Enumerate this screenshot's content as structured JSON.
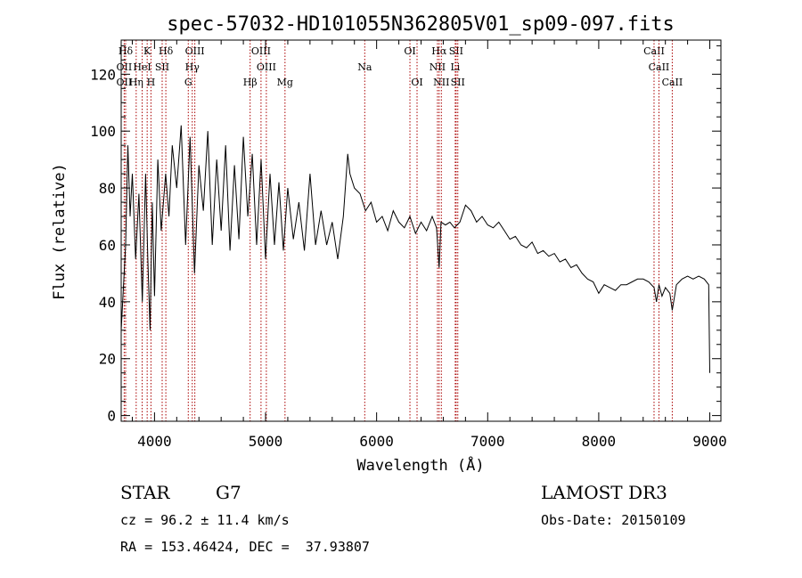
{
  "chart_data": {
    "type": "line",
    "title": "spec-57032-HD101055N362805V01_sp09-097.fits",
    "xlabel": "Wavelength (Å)",
    "ylabel": "Flux (relative)",
    "xlim": [
      3700,
      9100
    ],
    "ylim": [
      -2,
      132
    ],
    "xticks": [
      4000,
      5000,
      6000,
      7000,
      8000,
      9000
    ],
    "xtick_labels": [
      "4000",
      "5000",
      "6000",
      "7000",
      "8000",
      "9000"
    ],
    "yticks": [
      0,
      20,
      40,
      60,
      80,
      100,
      120
    ],
    "ytick_labels": [
      "0",
      "20",
      "40",
      "60",
      "80",
      "100",
      "120"
    ],
    "grid": false,
    "series": [
      {
        "name": "flux",
        "x": [
          3700,
          3720,
          3740,
          3760,
          3780,
          3800,
          3830,
          3860,
          3890,
          3920,
          3940,
          3960,
          3980,
          4000,
          4030,
          4060,
          4100,
          4130,
          4160,
          4200,
          4240,
          4280,
          4320,
          4360,
          4400,
          4440,
          4480,
          4520,
          4560,
          4600,
          4640,
          4680,
          4720,
          4760,
          4800,
          4840,
          4880,
          4920,
          4960,
          5000,
          5040,
          5080,
          5120,
          5160,
          5200,
          5250,
          5300,
          5350,
          5400,
          5450,
          5500,
          5550,
          5600,
          5650,
          5700,
          5740,
          5760,
          5800,
          5850,
          5900,
          5950,
          6000,
          6050,
          6100,
          6150,
          6200,
          6250,
          6300,
          6350,
          6400,
          6450,
          6500,
          6540,
          6563,
          6580,
          6620,
          6660,
          6700,
          6750,
          6800,
          6850,
          6900,
          6950,
          7000,
          7050,
          7100,
          7150,
          7200,
          7250,
          7300,
          7350,
          7400,
          7450,
          7500,
          7550,
          7600,
          7650,
          7700,
          7750,
          7800,
          7850,
          7900,
          7950,
          8000,
          8050,
          8100,
          8150,
          8200,
          8250,
          8300,
          8350,
          8400,
          8450,
          8498,
          8520,
          8542,
          8570,
          8600,
          8640,
          8662,
          8700,
          8750,
          8800,
          8850,
          8900,
          8950,
          8990,
          9000
        ],
        "y": [
          30,
          45,
          60,
          95,
          70,
          85,
          55,
          78,
          40,
          85,
          55,
          30,
          75,
          42,
          90,
          65,
          85,
          70,
          95,
          80,
          102,
          60,
          98,
          50,
          88,
          72,
          100,
          60,
          90,
          65,
          95,
          58,
          88,
          62,
          98,
          70,
          92,
          60,
          90,
          55,
          85,
          60,
          82,
          58,
          80,
          62,
          75,
          58,
          85,
          60,
          72,
          60,
          68,
          55,
          70,
          92,
          85,
          80,
          78,
          72,
          75,
          68,
          70,
          65,
          72,
          68,
          66,
          70,
          64,
          68,
          65,
          70,
          66,
          52,
          68,
          67,
          68,
          66,
          68,
          74,
          72,
          68,
          70,
          67,
          66,
          68,
          65,
          62,
          63,
          60,
          59,
          61,
          57,
          58,
          56,
          57,
          54,
          55,
          52,
          53,
          50,
          48,
          47,
          43,
          46,
          45,
          44,
          46,
          46,
          47,
          48,
          48,
          47,
          45,
          40,
          46,
          42,
          45,
          43,
          37,
          46,
          48,
          49,
          48,
          49,
          48,
          46,
          15
        ]
      }
    ],
    "line_markers": [
      {
        "label": "Hδ",
        "x": 3740,
        "row": 1
      },
      {
        "label": "K",
        "x": 3934,
        "row": 1
      },
      {
        "label": "Hδ",
        "x": 4102,
        "row": 1
      },
      {
        "label": "OIII",
        "x": 4363,
        "row": 1
      },
      {
        "label": "OIII",
        "x": 4959,
        "row": 1
      },
      {
        "label": "OI",
        "x": 6300,
        "row": 1
      },
      {
        "label": "Hα",
        "x": 6563,
        "row": 1
      },
      {
        "label": "SII",
        "x": 6716,
        "row": 1
      },
      {
        "label": "CaII",
        "x": 8498,
        "row": 1
      },
      {
        "label": "OII",
        "x": 3727,
        "row": 2
      },
      {
        "label": "HeI",
        "x": 3889,
        "row": 2
      },
      {
        "label": "SII",
        "x": 4069,
        "row": 2
      },
      {
        "label": "Hγ",
        "x": 4340,
        "row": 2
      },
      {
        "label": "OIII",
        "x": 5007,
        "row": 2
      },
      {
        "label": "Na",
        "x": 5893,
        "row": 2
      },
      {
        "label": "NII",
        "x": 6548,
        "row": 2
      },
      {
        "label": "Li",
        "x": 6708,
        "row": 2
      },
      {
        "label": "CaII",
        "x": 8542,
        "row": 2
      },
      {
        "label": "OII",
        "x": 3727,
        "row": 3
      },
      {
        "label": "Hη",
        "x": 3835,
        "row": 3
      },
      {
        "label": "H",
        "x": 3968,
        "row": 3
      },
      {
        "label": "G",
        "x": 4304,
        "row": 3
      },
      {
        "label": "Hβ",
        "x": 4861,
        "row": 3
      },
      {
        "label": "Mg",
        "x": 5175,
        "row": 3
      },
      {
        "label": "OI",
        "x": 6364,
        "row": 3
      },
      {
        "label": "NII",
        "x": 6583,
        "row": 3
      },
      {
        "label": "SII",
        "x": 6731,
        "row": 3
      },
      {
        "label": "CaII",
        "x": 8662,
        "row": 3
      }
    ]
  },
  "info": {
    "object_class": "STAR",
    "subclass": "G7",
    "survey": "LAMOST DR3",
    "cz": "cz = 96.2 ± 11.4 km/s",
    "obs_date": "Obs-Date: 20150109",
    "coords": "RA = 153.46424, DEC =  37.93807"
  },
  "colors": {
    "line": "#000000",
    "marker": "#aa0000",
    "text": "#000000",
    "background": "#ffffff"
  }
}
